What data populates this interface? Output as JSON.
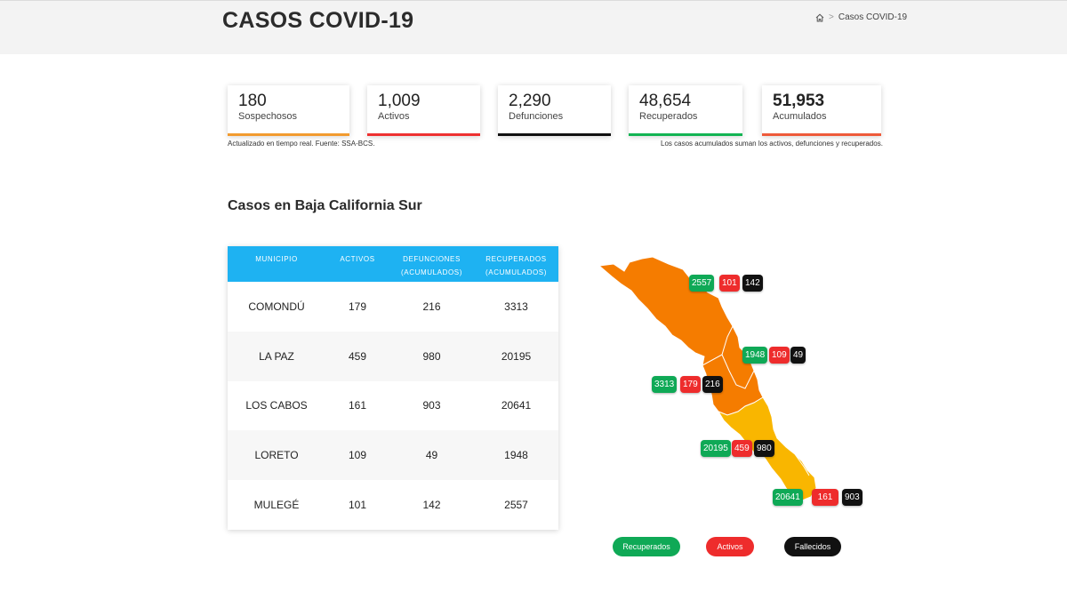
{
  "header": {
    "title": "CASOS COVID-19",
    "breadcrumb_current": "Casos COVID-19"
  },
  "stats": [
    {
      "value": "180",
      "label": "Sospechosos",
      "color": "#f29b2f"
    },
    {
      "value": "1,009",
      "label": "Activos",
      "color": "#ee3131"
    },
    {
      "value": "2,290",
      "label": "Defunciones",
      "color": "#111111"
    },
    {
      "value": "48,654",
      "label": "Recuperados",
      "color": "#13b453"
    },
    {
      "value": "51,953",
      "label": "Acumulados",
      "color": "#ee5a3a"
    }
  ],
  "notes": {
    "left": "Actualizado en tiempo real. Fuente: SSA-BCS.",
    "right": "Los casos acumulados suman los activos, defunciones y recuperados."
  },
  "section": {
    "title": "Casos en Baja California Sur"
  },
  "table": {
    "headers": [
      {
        "line1": "MUNICIPIO",
        "line2": ""
      },
      {
        "line1": "ACTIVOS",
        "line2": ""
      },
      {
        "line1": "DEFUNCIONES",
        "line2": "(ACUMULADOS)"
      },
      {
        "line1": "RECUPERADOS",
        "line2": "(ACUMULADOS)"
      }
    ],
    "rows": [
      {
        "municipio": "COMONDÚ",
        "activos": "179",
        "defunciones": "216",
        "recuperados": "3313"
      },
      {
        "municipio": "LA PAZ",
        "activos": "459",
        "defunciones": "980",
        "recuperados": "20195"
      },
      {
        "municipio": "LOS CABOS",
        "activos": "161",
        "defunciones": "903",
        "recuperados": "20641"
      },
      {
        "municipio": "LORETO",
        "activos": "109",
        "defunciones": "49",
        "recuperados": "1948"
      },
      {
        "municipio": "MULEGÉ",
        "activos": "101",
        "defunciones": "142",
        "recuperados": "2557"
      }
    ]
  },
  "map": {
    "colors": {
      "north": "#f57c00",
      "south": "#f9b600",
      "recuperados": "#0fa956",
      "activos": "#ee2c2c",
      "fallecidos": "#111111"
    },
    "labels": {
      "mulege": {
        "recuperados": "2557",
        "activos": "101",
        "fallecidos": "142"
      },
      "loreto": {
        "recuperados": "1948",
        "activos": "109",
        "fallecidos": "49"
      },
      "comondu": {
        "recuperados": "3313",
        "activos": "179",
        "fallecidos": "216"
      },
      "lapaz": {
        "recuperados": "20195",
        "activos": "459",
        "fallecidos": "980"
      },
      "loscabos": {
        "recuperados": "20641",
        "activos": "161",
        "fallecidos": "903"
      }
    }
  },
  "legend": {
    "recuperados": "Recuperados",
    "activos": "Activos",
    "fallecidos": "Fallecidos"
  }
}
